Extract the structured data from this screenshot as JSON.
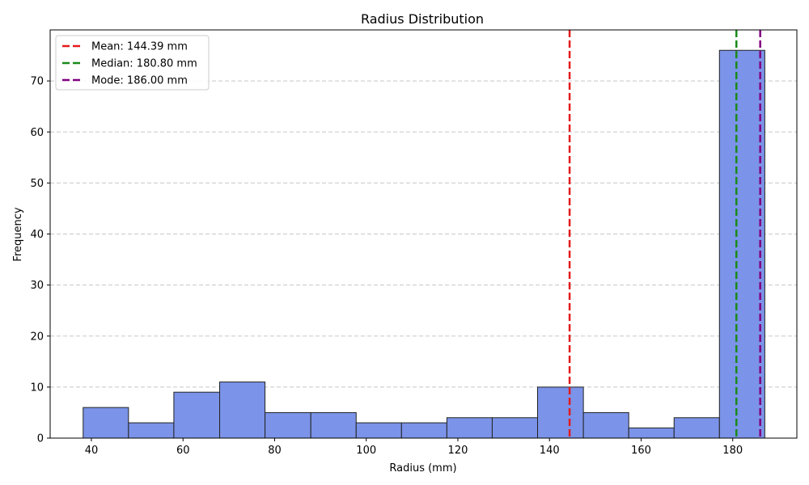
{
  "chart_data": {
    "type": "bar",
    "title": "Radius Distribution",
    "xlabel": "Radius (mm)",
    "ylabel": "Frequency",
    "xlim": [
      31,
      194
    ],
    "ylim": [
      0,
      80
    ],
    "xticks": [
      40,
      60,
      80,
      100,
      120,
      140,
      160,
      180
    ],
    "yticks": [
      0,
      10,
      20,
      30,
      40,
      50,
      60,
      70
    ],
    "grid": "y-dashed",
    "bins": [
      {
        "start": 38.2,
        "end": 48.1,
        "count": 6
      },
      {
        "start": 48.1,
        "end": 58.0,
        "count": 3
      },
      {
        "start": 58.0,
        "end": 68.0,
        "count": 9
      },
      {
        "start": 68.0,
        "end": 77.9,
        "count": 11
      },
      {
        "start": 77.9,
        "end": 87.9,
        "count": 5
      },
      {
        "start": 87.9,
        "end": 97.8,
        "count": 5
      },
      {
        "start": 97.8,
        "end": 107.7,
        "count": 3
      },
      {
        "start": 107.7,
        "end": 117.6,
        "count": 3
      },
      {
        "start": 117.6,
        "end": 127.5,
        "count": 4
      },
      {
        "start": 127.5,
        "end": 137.4,
        "count": 4
      },
      {
        "start": 137.4,
        "end": 147.4,
        "count": 10
      },
      {
        "start": 147.4,
        "end": 157.3,
        "count": 5
      },
      {
        "start": 157.3,
        "end": 167.2,
        "count": 2
      },
      {
        "start": 167.2,
        "end": 177.1,
        "count": 4
      },
      {
        "start": 177.1,
        "end": 187.0,
        "count": 76
      }
    ],
    "reference_lines": [
      {
        "label": "Mean: 144.39 mm",
        "value": 144.39,
        "color": "#e31a1c"
      },
      {
        "label": "Median: 180.80 mm",
        "value": 180.8,
        "color": "#1a8a1a"
      },
      {
        "label": "Mode: 186.00 mm",
        "value": 186.0,
        "color": "#800080"
      }
    ],
    "bar_color": "#7b93e8",
    "bar_edge_color": "#222222",
    "legend_position": "top-left"
  }
}
